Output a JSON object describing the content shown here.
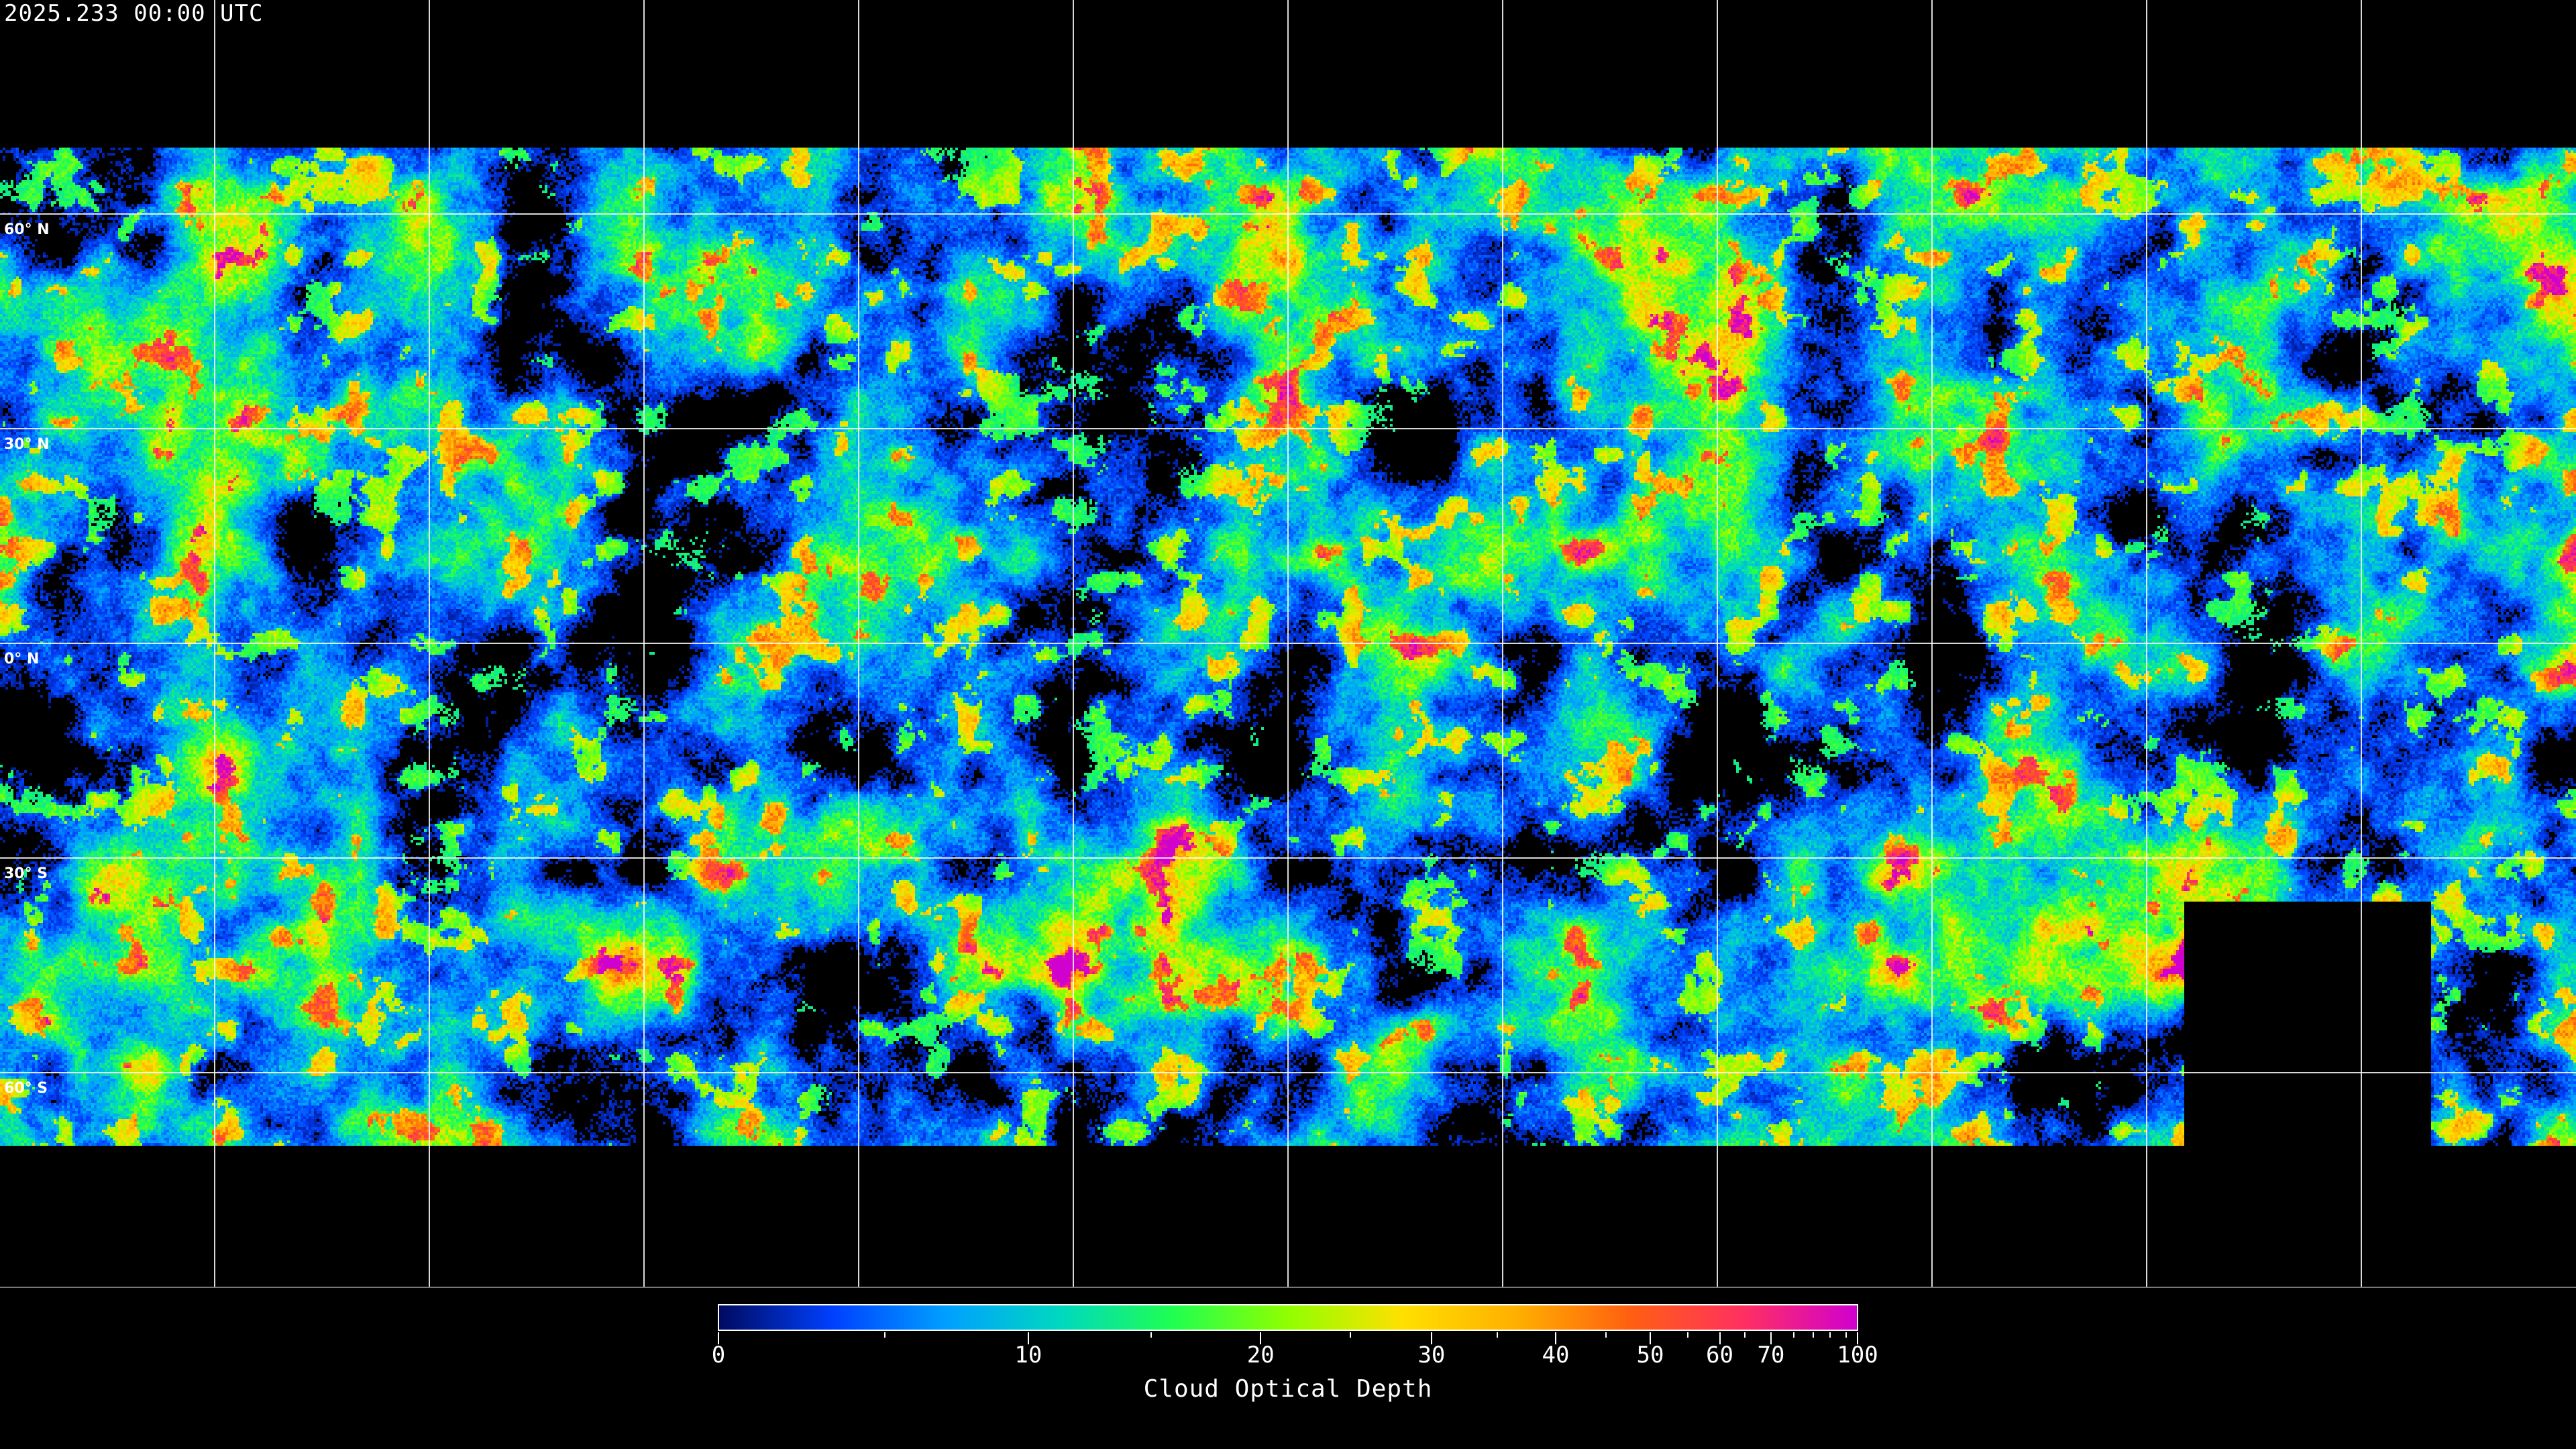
{
  "timestamp": "2025.233 00:00 UTC",
  "map": {
    "projection": "equirectangular",
    "latitude_labels": [
      "60° N",
      "30° N",
      "0° N",
      "30° S",
      "60° S"
    ],
    "gridline_spacing_degrees": 30,
    "gridline_color": "#ffffff",
    "coastline_color": "#ffffff",
    "no_data_color": "#000000"
  },
  "colorbar": {
    "title": "Cloud Optical Depth",
    "min": 0,
    "max": 100,
    "tick_labels": [
      "0",
      "10",
      "20",
      "30",
      "40",
      "50",
      "60",
      "70",
      "100"
    ],
    "colors": [
      "#000a60",
      "#0040ff",
      "#00a0ff",
      "#00d8c0",
      "#20ff50",
      "#90ff00",
      "#ffe000",
      "#ffb000",
      "#ff6010",
      "#ff3060",
      "#d000d0"
    ]
  }
}
